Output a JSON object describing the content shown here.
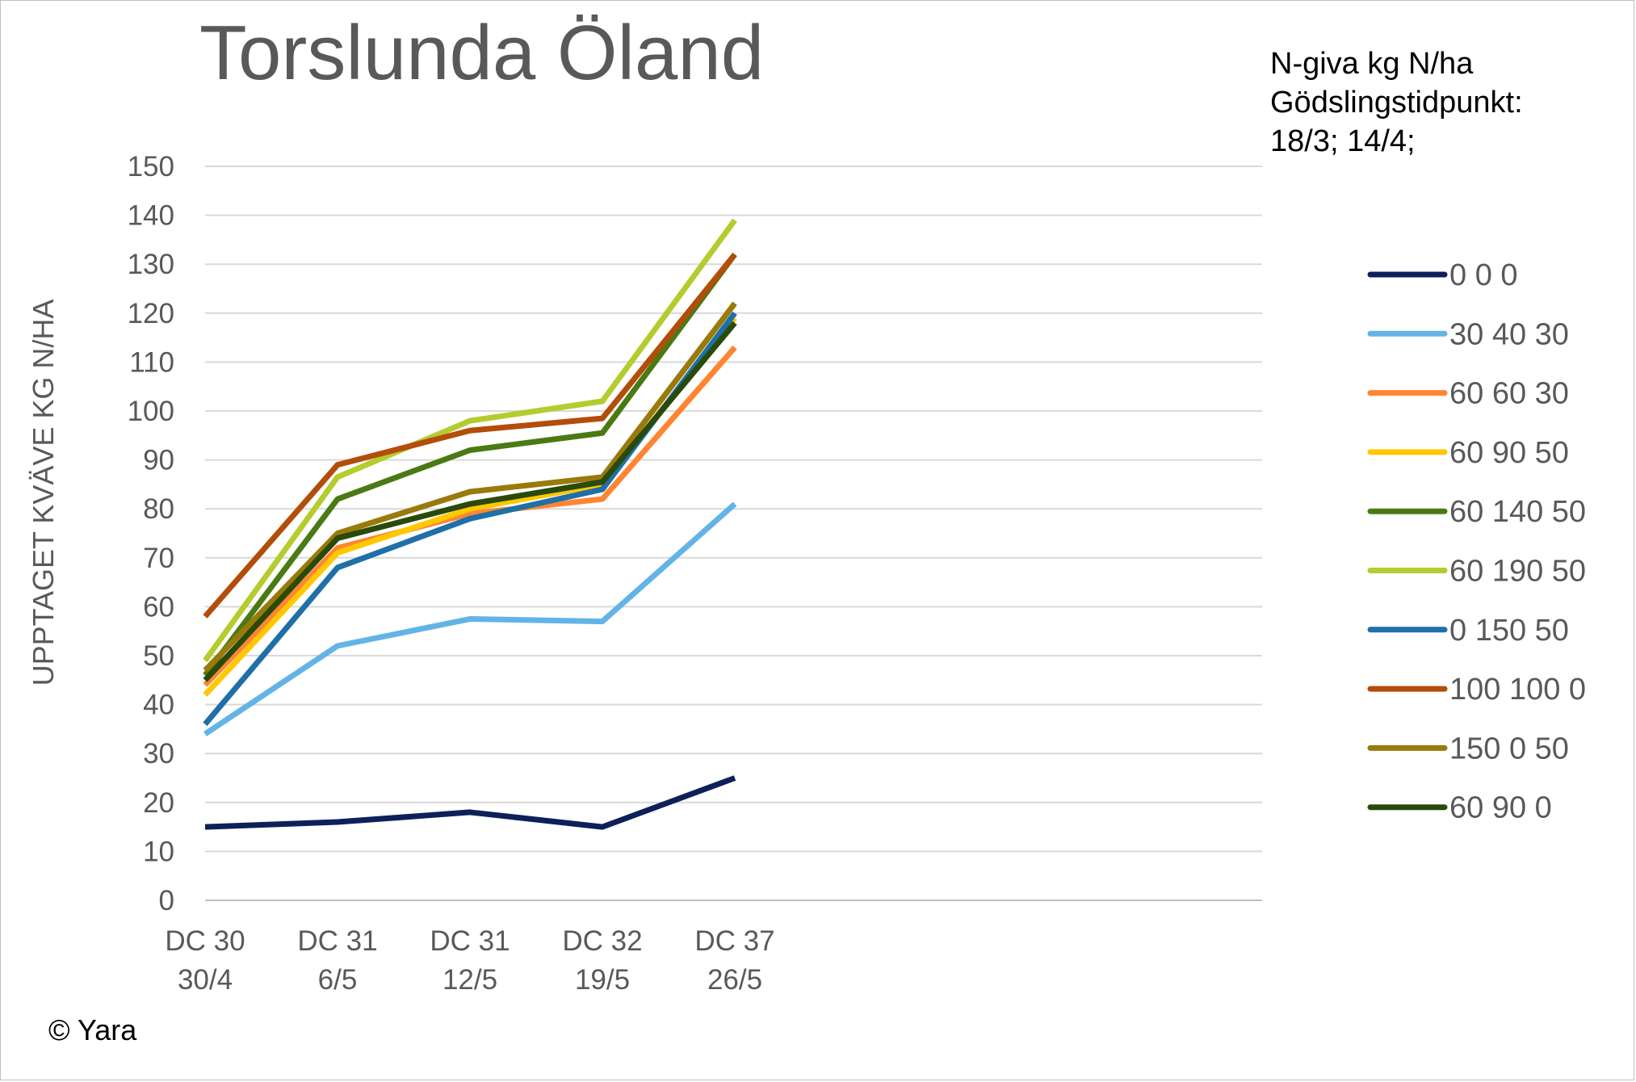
{
  "title": "Torslunda Öland",
  "note": [
    "N-giva kg N/ha",
    "Gödslingstidpunkt:",
    "18/3; 14/4;"
  ],
  "copyright": "© Yara",
  "chart_data": {
    "type": "line",
    "title": "Torslunda Öland",
    "xlabel": "",
    "ylabel": "UPPTAGET KVÄVE KG N/HA",
    "ylim": [
      0,
      150
    ],
    "yticks": [
      0,
      10,
      20,
      30,
      40,
      50,
      60,
      70,
      80,
      90,
      100,
      110,
      120,
      130,
      140,
      150
    ],
    "grid": true,
    "legend_position": "right",
    "categories": [
      [
        "DC 30",
        "30/4"
      ],
      [
        "DC 31",
        "6/5"
      ],
      [
        "DC 31",
        "12/5"
      ],
      [
        "DC 32",
        "19/5"
      ],
      [
        "DC 37",
        "26/5"
      ]
    ],
    "series": [
      {
        "name": "0 0 0",
        "color": "#0d2059",
        "values": [
          15,
          16,
          18,
          15,
          25
        ]
      },
      {
        "name": "30 40 30",
        "color": "#63b4e6",
        "values": [
          34,
          52,
          57.5,
          57,
          81
        ]
      },
      {
        "name": "60 60 30",
        "color": "#ff8533",
        "values": [
          44,
          72,
          79,
          82,
          113
        ]
      },
      {
        "name": "60 90 50",
        "color": "#ffc800",
        "values": [
          42,
          71,
          80,
          85,
          119
        ]
      },
      {
        "name": "60 140 50",
        "color": "#4a7a13",
        "values": [
          46,
          82,
          92,
          95.5,
          132
        ]
      },
      {
        "name": "60 190 50",
        "color": "#b5cc2e",
        "values": [
          49,
          86.5,
          98,
          102,
          139
        ]
      },
      {
        "name": "0 150 50",
        "color": "#1f6fa8",
        "values": [
          36,
          68,
          78,
          84,
          120
        ]
      },
      {
        "name": "100 100 0",
        "color": "#b34d0a",
        "values": [
          58,
          89,
          96,
          98.5,
          132
        ]
      },
      {
        "name": "150 0 50",
        "color": "#997a0a",
        "values": [
          47,
          75,
          83.5,
          86.5,
          122
        ]
      },
      {
        "name": "60 90 0",
        "color": "#2a4a0a",
        "values": [
          45,
          74,
          81,
          85.5,
          118
        ]
      }
    ]
  }
}
